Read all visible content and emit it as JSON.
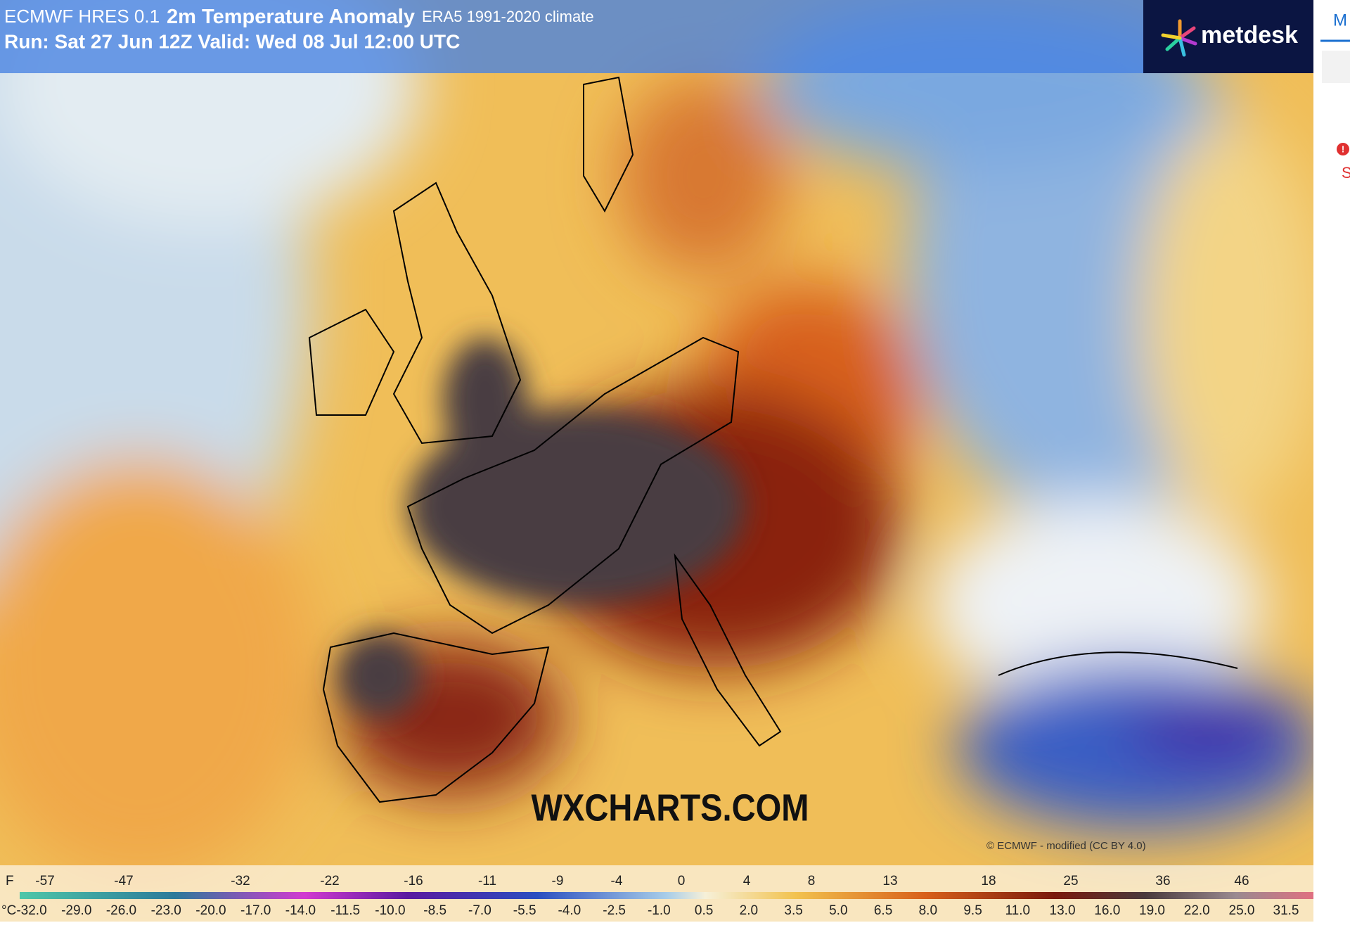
{
  "header": {
    "model": "ECMWF HRES 0.1",
    "title": "2m Temperature Anomaly",
    "climate": "ERA5 1991-2020 climate",
    "run": "Run: Sat 27 Jun 12Z Valid: Wed 08 Jul 12:00 UTC"
  },
  "logo": "metdesk",
  "watermark": "WXCHARTS.COM",
  "copyright": "© ECMWF - modified (CC BY 4.0)",
  "legend": {
    "f_unit": "F",
    "f_labels": [
      "-57",
      "-47",
      "-32",
      "-22",
      "-16",
      "-11",
      "-9",
      "-4",
      "0",
      "4",
      "8",
      "13",
      "18",
      "25",
      "36",
      "46"
    ],
    "c_unit": "°C",
    "c_labels": [
      "-32.0",
      "-29.0",
      "-26.0",
      "-23.0",
      "-20.0",
      "-17.0",
      "-14.0",
      "-11.5",
      "-10.0",
      "-8.5",
      "-7.0",
      "-5.5",
      "-4.0",
      "-2.5",
      "-1.0",
      "0.5",
      "2.0",
      "3.5",
      "5.0",
      "6.5",
      "8.0",
      "9.5",
      "11.0",
      "13.0",
      "16.0",
      "19.0",
      "22.0",
      "25.0",
      "31.5"
    ]
  },
  "side_panel": {
    "tab": "M",
    "alert": "S"
  }
}
